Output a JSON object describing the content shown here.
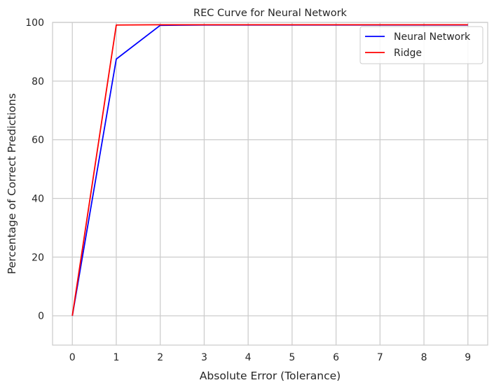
{
  "chart_data": {
    "type": "line",
    "title": "REC Curve for Neural Network",
    "xlabel": "Absolute Error (Tolerance)",
    "ylabel": "Percentage of Correct Predictions",
    "x": [
      0,
      1,
      2,
      3,
      4,
      5,
      6,
      7,
      8,
      9
    ],
    "xticks": [
      "0",
      "1",
      "2",
      "3",
      "4",
      "5",
      "6",
      "7",
      "8",
      "9"
    ],
    "yticks": [
      "0",
      "20",
      "40",
      "60",
      "80",
      "100"
    ],
    "xlim": [
      -0.45,
      9.45
    ],
    "ylim": [
      -10,
      100
    ],
    "grid": true,
    "legend_position": "top-right",
    "series": [
      {
        "name": "Neural Network",
        "color": "#0000ff",
        "values": [
          0,
          87.5,
          99.0,
          99.1,
          99.1,
          99.1,
          99.1,
          99.1,
          99.1,
          99.1
        ]
      },
      {
        "name": "Ridge",
        "color": "#ff0000",
        "values": [
          0,
          99.1,
          99.2,
          99.2,
          99.2,
          99.2,
          99.2,
          99.2,
          99.2,
          99.2
        ]
      }
    ]
  }
}
